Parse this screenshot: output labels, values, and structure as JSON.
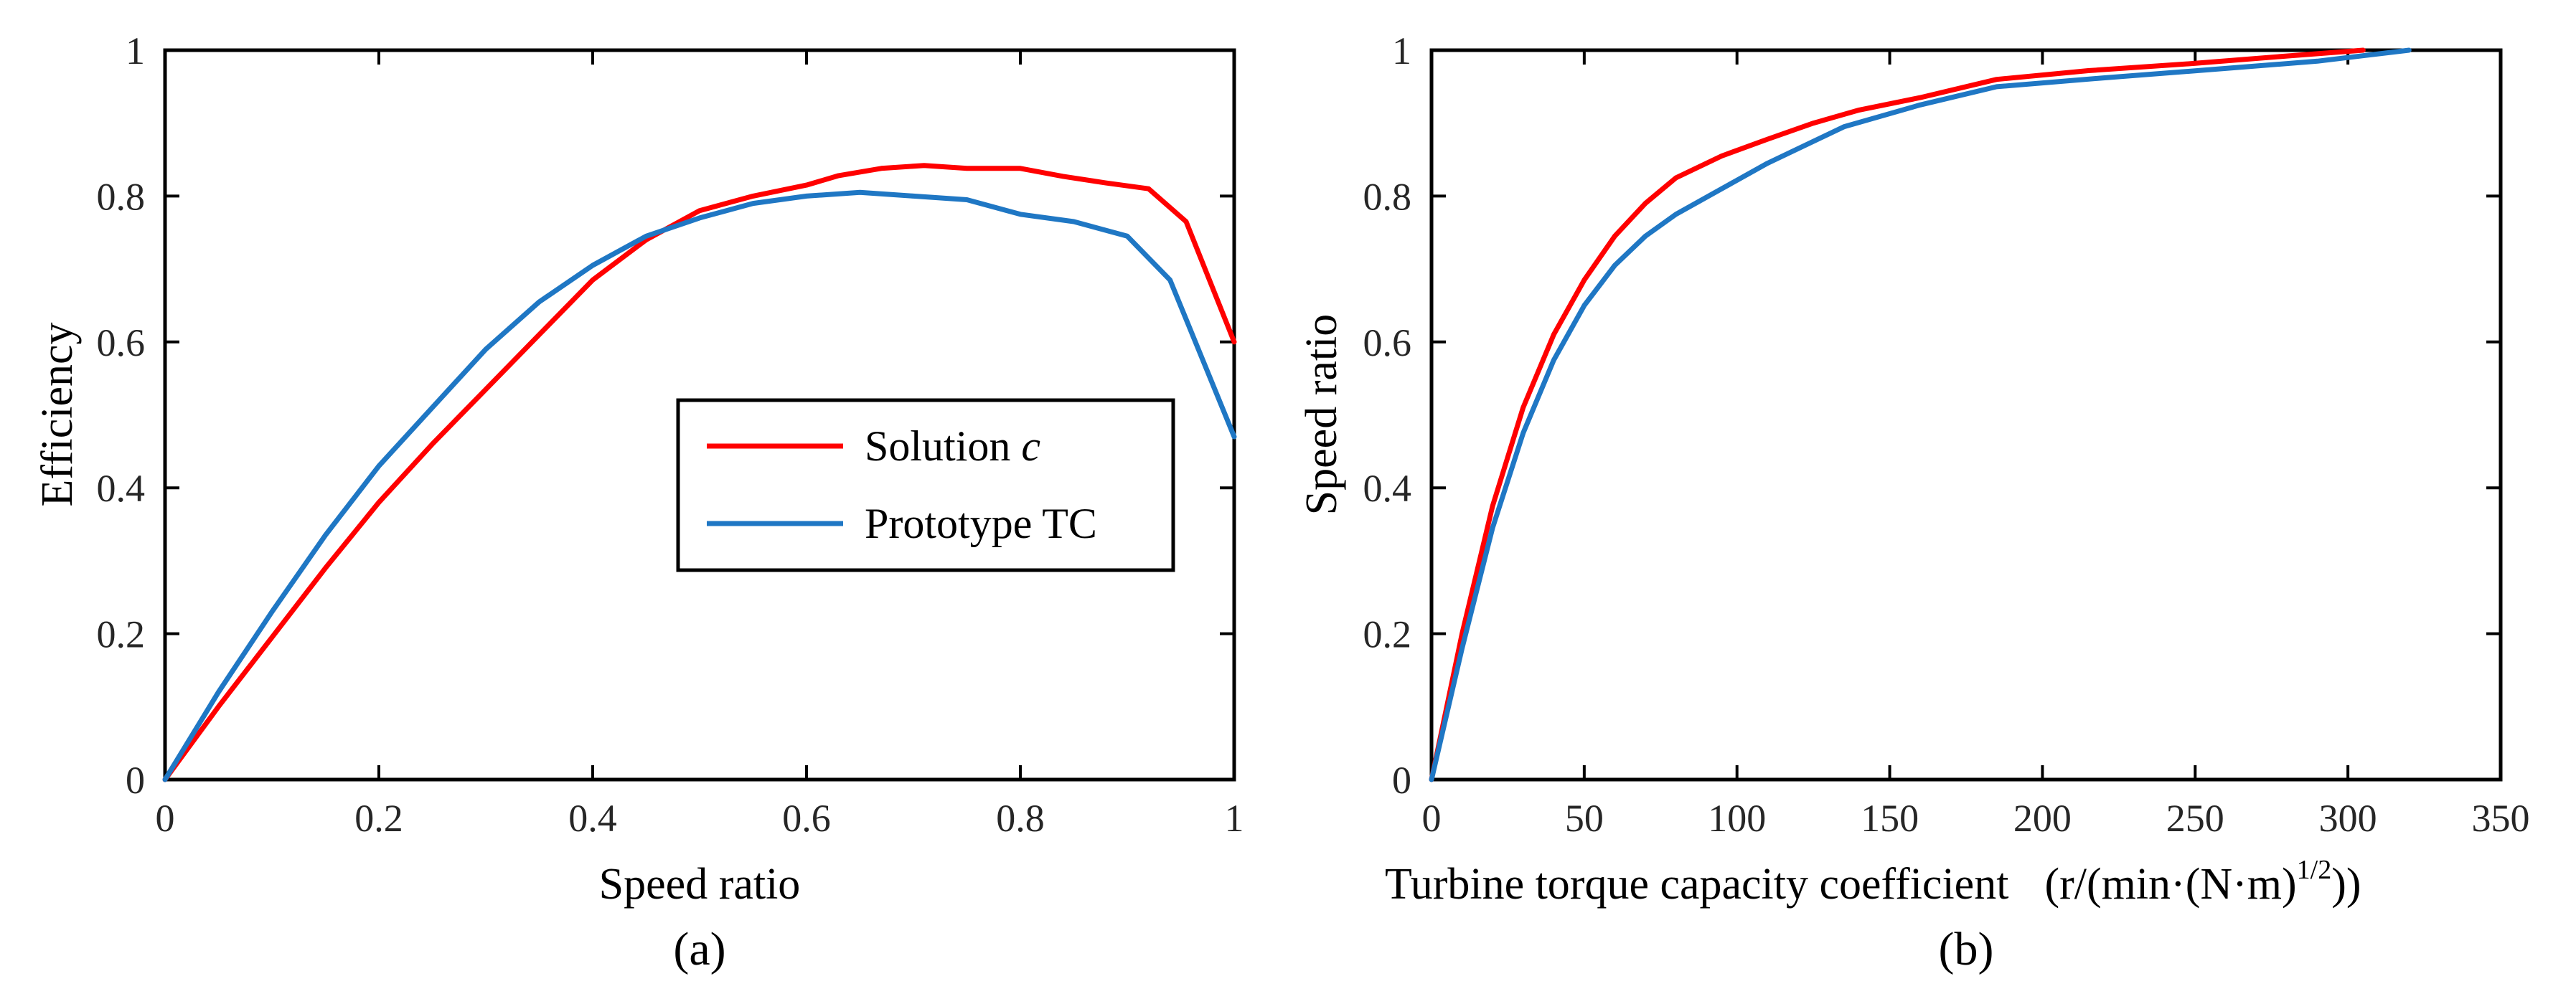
{
  "chart_data": [
    {
      "type": "line",
      "caption": "(a)",
      "xlabel": "Speed ratio",
      "ylabel": "Efficiency",
      "xlim": [
        0,
        1
      ],
      "ylim": [
        0,
        1
      ],
      "xticks": [
        "0",
        "0.2",
        "0.4",
        "0.6",
        "0.8",
        "1"
      ],
      "yticks": [
        "0",
        "0.2",
        "0.4",
        "0.6",
        "0.8",
        "1"
      ],
      "grid": false,
      "legend_position": "center-right",
      "series": [
        {
          "name": "Solution",
          "name_italic": "c",
          "color": "#ff0000",
          "x": [
            0,
            0.05,
            0.1,
            0.15,
            0.2,
            0.25,
            0.3,
            0.35,
            0.4,
            0.45,
            0.5,
            0.55,
            0.6,
            0.63,
            0.67,
            0.71,
            0.75,
            0.8,
            0.84,
            0.88,
            0.92,
            0.955,
            1.0
          ],
          "y": [
            0,
            0.1,
            0.195,
            0.29,
            0.38,
            0.46,
            0.535,
            0.61,
            0.685,
            0.74,
            0.78,
            0.8,
            0.815,
            0.828,
            0.838,
            0.842,
            0.838,
            0.838,
            0.827,
            0.818,
            0.81,
            0.765,
            0.6
          ]
        },
        {
          "name": "Prototype TC",
          "name_italic": "",
          "color": "#1f77c4",
          "x": [
            0,
            0.05,
            0.1,
            0.15,
            0.2,
            0.25,
            0.3,
            0.35,
            0.4,
            0.45,
            0.5,
            0.55,
            0.6,
            0.65,
            0.7,
            0.75,
            0.8,
            0.85,
            0.9,
            0.94,
            1.0
          ],
          "y": [
            0,
            0.12,
            0.23,
            0.335,
            0.43,
            0.51,
            0.59,
            0.655,
            0.705,
            0.745,
            0.77,
            0.79,
            0.8,
            0.805,
            0.8,
            0.795,
            0.775,
            0.765,
            0.745,
            0.685,
            0.47
          ]
        }
      ]
    },
    {
      "type": "line",
      "caption": "(b)",
      "xlabel": "Turbine torque capacity coefficient",
      "xlabel_units": "(r/(min·(N·m)",
      "xlabel_units_sup": "1/2",
      "xlabel_units_end": "))",
      "ylabel": "Speed ratio",
      "xlim": [
        0,
        350
      ],
      "ylim": [
        0,
        1
      ],
      "xticks": [
        "0",
        "50",
        "100",
        "150",
        "200",
        "250",
        "300",
        "350"
      ],
      "yticks": [
        "0",
        "0.2",
        "0.4",
        "0.6",
        "0.8",
        "1"
      ],
      "grid": false,
      "series": [
        {
          "name": "Solution c",
          "color": "#ff0000",
          "x": [
            0,
            10,
            20,
            30,
            40,
            50,
            60,
            70,
            80,
            95,
            110,
            125,
            140,
            160,
            185,
            215,
            250,
            280,
            305
          ],
          "y": [
            0,
            0.2,
            0.375,
            0.51,
            0.61,
            0.685,
            0.745,
            0.79,
            0.825,
            0.855,
            0.878,
            0.9,
            0.918,
            0.935,
            0.96,
            0.972,
            0.982,
            0.992,
            1.0
          ]
        },
        {
          "name": "Prototype TC",
          "color": "#1f77c4",
          "x": [
            0,
            10,
            20,
            30,
            40,
            50,
            60,
            70,
            80,
            95,
            110,
            135,
            160,
            185,
            220,
            260,
            290,
            320
          ],
          "y": [
            0,
            0.18,
            0.345,
            0.475,
            0.575,
            0.65,
            0.705,
            0.745,
            0.775,
            0.81,
            0.845,
            0.895,
            0.925,
            0.95,
            0.962,
            0.975,
            0.985,
            1.0
          ]
        }
      ]
    }
  ]
}
